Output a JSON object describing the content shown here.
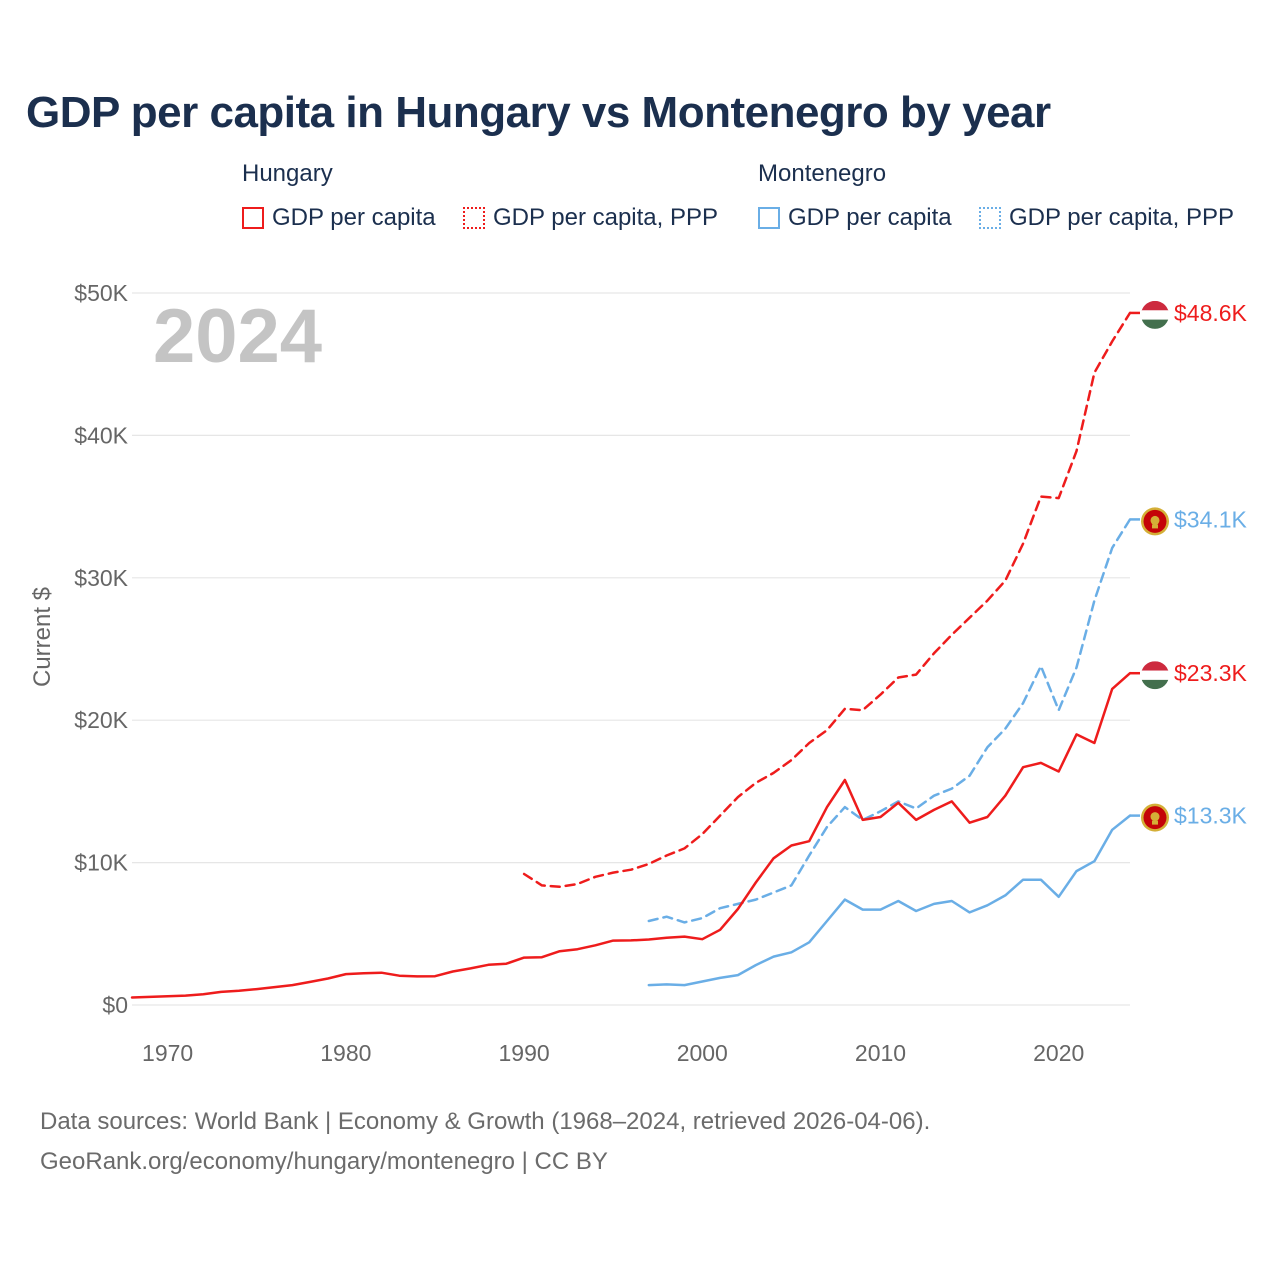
{
  "title": "GDP per capita in Hungary vs Montenegro by year",
  "legend": {
    "hungary": {
      "heading": "Hungary",
      "solid": "GDP per capita",
      "dotted": "GDP per capita, PPP"
    },
    "montenegro": {
      "heading": "Montenegro",
      "solid": "GDP per capita",
      "dotted": "GDP per capita, PPP"
    }
  },
  "year_label": "2024",
  "source": {
    "line1": "Data sources: World Bank | Economy & Growth (1968–2024, retrieved 2026-04-06).",
    "line2": "GeoRank.org/economy/hungary/montenegro | CC BY"
  },
  "colors": {
    "hungary": "#ee1c1c",
    "montenegro": "#6aaee6",
    "title": "#1b2f4e",
    "axis_text": "#666666",
    "grid": "#e6e6e6",
    "year_watermark": "#c4c4c4"
  },
  "chart_data": {
    "type": "line",
    "title": "GDP per capita in Hungary vs Montenegro by year",
    "xlabel": "",
    "ylabel": "Current $",
    "xlim": [
      1968,
      2024
    ],
    "ylim": [
      0,
      50000
    ],
    "x_ticks": [
      1970,
      1980,
      1990,
      2000,
      2010,
      2020
    ],
    "x_tick_labels": [
      "1970",
      "1980",
      "1990",
      "2000",
      "2010",
      "2020"
    ],
    "y_ticks": [
      0,
      10000,
      20000,
      30000,
      40000,
      50000
    ],
    "y_tick_labels": [
      "$0",
      "$10K",
      "$20K",
      "$30K",
      "$40K",
      "$50K"
    ],
    "series": [
      {
        "name": "Hungary GDP per capita, PPP",
        "country": "Hungary",
        "style": "dashed",
        "end_label": "$48.6K",
        "x": [
          1990,
          1991,
          1992,
          1993,
          1994,
          1995,
          1996,
          1997,
          1998,
          1999,
          2000,
          2001,
          2002,
          2003,
          2004,
          2005,
          2006,
          2007,
          2008,
          2009,
          2010,
          2011,
          2012,
          2013,
          2014,
          2015,
          2016,
          2017,
          2018,
          2019,
          2020,
          2021,
          2022,
          2023,
          2024
        ],
        "values": [
          9200,
          8400,
          8300,
          8500,
          9000,
          9300,
          9500,
          9900,
          10500,
          11000,
          12000,
          13300,
          14600,
          15600,
          16300,
          17200,
          18400,
          19300,
          20800,
          20700,
          21800,
          23000,
          23200,
          24700,
          26000,
          27200,
          28400,
          29800,
          32400,
          35700,
          35600,
          38900,
          44400,
          46600,
          48600
        ]
      },
      {
        "name": "Montenegro GDP per capita, PPP",
        "country": "Montenegro",
        "style": "dashed",
        "end_label": "$34.1K",
        "x": [
          1997,
          1998,
          1999,
          2000,
          2001,
          2002,
          2003,
          2004,
          2005,
          2006,
          2007,
          2008,
          2009,
          2010,
          2011,
          2012,
          2013,
          2014,
          2015,
          2016,
          2017,
          2018,
          2019,
          2020,
          2021,
          2022,
          2023,
          2024
        ],
        "values": [
          5900,
          6200,
          5800,
          6100,
          6800,
          7100,
          7400,
          7900,
          8400,
          10500,
          12500,
          13900,
          13000,
          13600,
          14300,
          13800,
          14700,
          15200,
          16100,
          18100,
          19400,
          21200,
          23800,
          20700,
          23700,
          28400,
          32100,
          34100
        ]
      },
      {
        "name": "Hungary GDP per capita",
        "country": "Hungary",
        "style": "solid",
        "end_label": "$23.3K",
        "x": [
          1968,
          1969,
          1970,
          1971,
          1972,
          1973,
          1974,
          1975,
          1976,
          1977,
          1978,
          1979,
          1980,
          1981,
          1982,
          1983,
          1984,
          1985,
          1986,
          1987,
          1988,
          1989,
          1990,
          1991,
          1992,
          1993,
          1994,
          1995,
          1996,
          1997,
          1998,
          1999,
          2000,
          2001,
          2002,
          2003,
          2004,
          2005,
          2006,
          2007,
          2008,
          2009,
          2010,
          2011,
          2012,
          2013,
          2014,
          2015,
          2016,
          2017,
          2018,
          2019,
          2020,
          2021,
          2022,
          2023,
          2024
        ],
        "values": [
          530,
          570,
          620,
          660,
          750,
          920,
          1000,
          1120,
          1260,
          1400,
          1620,
          1860,
          2170,
          2230,
          2270,
          2060,
          2010,
          2020,
          2350,
          2570,
          2820,
          2900,
          3330,
          3360,
          3780,
          3920,
          4190,
          4520,
          4540,
          4600,
          4720,
          4800,
          4620,
          5280,
          6740,
          8600,
          10300,
          11200,
          11500,
          13900,
          15800,
          13000,
          13200,
          14200,
          13000,
          13700,
          14300,
          12800,
          13200,
          14700,
          16700,
          17000,
          16400,
          19000,
          18400,
          22200,
          23300
        ]
      },
      {
        "name": "Montenegro GDP per capita",
        "country": "Montenegro",
        "style": "solid",
        "end_label": "$13.3K",
        "x": [
          1997,
          1998,
          1999,
          2000,
          2001,
          2002,
          2003,
          2004,
          2005,
          2006,
          2007,
          2008,
          2009,
          2010,
          2011,
          2012,
          2013,
          2014,
          2015,
          2016,
          2017,
          2018,
          2019,
          2020,
          2021,
          2022,
          2023,
          2024
        ],
        "values": [
          1400,
          1450,
          1400,
          1650,
          1900,
          2100,
          2800,
          3400,
          3700,
          4400,
          5900,
          7400,
          6700,
          6700,
          7300,
          6600,
          7100,
          7300,
          6500,
          7000,
          7700,
          8800,
          8800,
          7600,
          9400,
          10100,
          12300,
          13300
        ]
      }
    ]
  }
}
